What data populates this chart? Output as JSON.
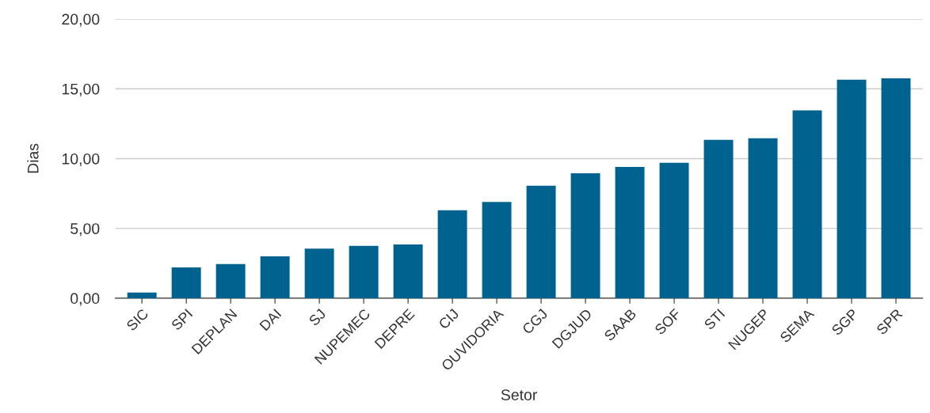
{
  "chart_data": {
    "type": "bar",
    "xlabel": "Setor",
    "ylabel": "Dias",
    "categories": [
      "SIC",
      "SPI",
      "DEPLAN",
      "DAI",
      "SJ",
      "NUPEMEC",
      "DEPRE",
      "CIJ",
      "OUVIDORIA",
      "CGJ",
      "DGJUD",
      "SAAB",
      "SOF",
      "STI",
      "NUGEP",
      "SEMA",
      "SGP",
      "SPR"
    ],
    "values": [
      0.4,
      2.2,
      2.45,
      3.0,
      3.55,
      3.75,
      3.85,
      6.3,
      6.9,
      8.05,
      8.95,
      9.4,
      9.7,
      11.35,
      11.45,
      13.45,
      15.65,
      15.75
    ],
    "color": "#00628f",
    "ylim": [
      0,
      20
    ],
    "yticks": [
      {
        "value": 0,
        "label": "0,00"
      },
      {
        "value": 5,
        "label": "5,00"
      },
      {
        "value": 10,
        "label": "10,00"
      },
      {
        "value": 15,
        "label": "15,00"
      },
      {
        "value": 20,
        "label": "20,00"
      }
    ],
    "grid": "y"
  }
}
